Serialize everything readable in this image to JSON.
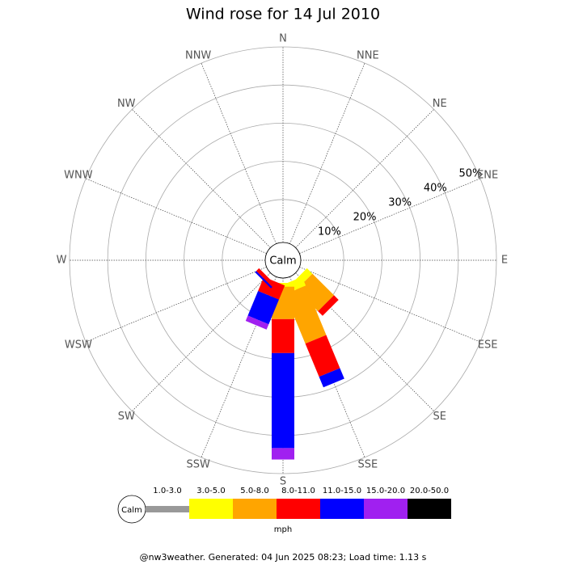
{
  "chart_data": {
    "type": "windrose",
    "title": "Wind rose for 14 Jul 2010",
    "directions": [
      "N",
      "NNE",
      "NE",
      "ENE",
      "E",
      "ESE",
      "SE",
      "SSE",
      "S",
      "SSW",
      "SW",
      "WSW",
      "W",
      "WNW",
      "NW",
      "NNW"
    ],
    "rlim": [
      0,
      50
    ],
    "rticks": [
      {
        "value": 10,
        "label": "10%"
      },
      {
        "value": 20,
        "label": "20%"
      },
      {
        "value": 30,
        "label": "30%"
      },
      {
        "value": 40,
        "label": "40%"
      },
      {
        "value": 50,
        "label": "50%"
      }
    ],
    "center_label": "Calm",
    "legend_center_label": "Calm",
    "unit_label": "mph",
    "series": [
      {
        "name": "1.0-3.0",
        "color": "#999999",
        "values": [
          0,
          0,
          0,
          0,
          0,
          0,
          0,
          0,
          0,
          0,
          0,
          0,
          0,
          0,
          0,
          0
        ]
      },
      {
        "name": "3.0-5.0",
        "color": "#ffff00",
        "values": [
          0,
          0,
          0,
          0,
          0,
          0,
          2,
          2.5,
          1,
          0,
          0,
          0,
          0,
          0,
          0,
          0
        ]
      },
      {
        "name": "5.0-8.0",
        "color": "#ffa500",
        "values": [
          0,
          0,
          0,
          0,
          0,
          0,
          8,
          14,
          8.5,
          0,
          0,
          0,
          0,
          0,
          0,
          0
        ]
      },
      {
        "name": "8.0-11.0",
        "color": "#ff0000",
        "values": [
          0,
          0,
          0,
          0,
          0,
          0,
          1.7,
          9.4,
          8.9,
          4,
          1,
          0,
          0,
          0,
          0,
          0
        ]
      },
      {
        "name": "11.0-15.0",
        "color": "#0000ff",
        "values": [
          0,
          0,
          0,
          0,
          0,
          0,
          0,
          3,
          24.9,
          7,
          0.5,
          0,
          0,
          0,
          0,
          0
        ]
      },
      {
        "name": "15.0-20.0",
        "color": "#a020f0",
        "values": [
          0,
          0,
          0,
          0,
          0,
          0,
          0,
          0,
          3,
          1.5,
          0,
          0,
          0,
          0,
          0,
          0
        ]
      },
      {
        "name": "20.0-50.0",
        "color": "#000000",
        "values": [
          0,
          0,
          0,
          0,
          0,
          0,
          0,
          0,
          0,
          0,
          0,
          0,
          0,
          0,
          0,
          0
        ]
      }
    ],
    "footer": "@nw3weather. Generated: 04 Jun 2025 08:23; Load time: 1.13 s"
  }
}
